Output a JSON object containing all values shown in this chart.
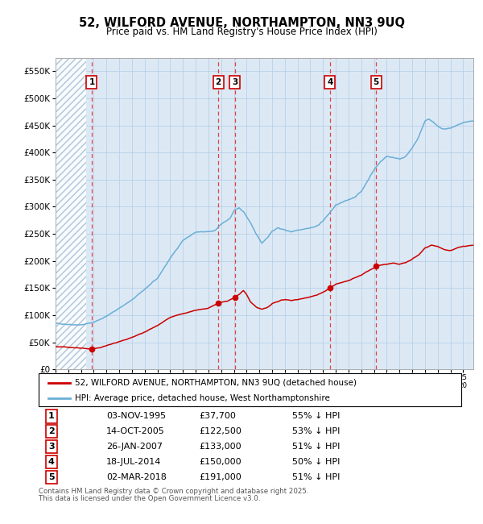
{
  "title_line1": "52, WILFORD AVENUE, NORTHAMPTON, NN3 9UQ",
  "title_line2": "Price paid vs. HM Land Registry's House Price Index (HPI)",
  "legend_line1": "52, WILFORD AVENUE, NORTHAMPTON, NN3 9UQ (detached house)",
  "legend_line2": "HPI: Average price, detached house, West Northamptonshire",
  "footer_line1": "Contains HM Land Registry data © Crown copyright and database right 2025.",
  "footer_line2": "This data is licensed under the Open Government Licence v3.0.",
  "sale_points": [
    {
      "num": 1,
      "date": "03-NOV-1995",
      "price": 37700,
      "pct": "55% ↓ HPI",
      "x_year": 1995.84
    },
    {
      "num": 2,
      "date": "14-OCT-2005",
      "price": 122500,
      "pct": "53% ↓ HPI",
      "x_year": 2005.78
    },
    {
      "num": 3,
      "date": "26-JAN-2007",
      "price": 133000,
      "pct": "51% ↓ HPI",
      "x_year": 2007.07
    },
    {
      "num": 4,
      "date": "18-JUL-2014",
      "price": 150000,
      "pct": "50% ↓ HPI",
      "x_year": 2014.54
    },
    {
      "num": 5,
      "date": "02-MAR-2018",
      "price": 191000,
      "pct": "51% ↓ HPI",
      "x_year": 2018.17
    }
  ],
  "hpi_color": "#6baed6",
  "sold_color": "#cc0000",
  "vline_color": "#e84040",
  "bg_color": "#dce9f5",
  "grid_color": "#b8d0e8",
  "ylim": [
    0,
    575000
  ],
  "xlim_start": 1993.0,
  "xlim_end": 2025.8,
  "yticks": [
    0,
    50000,
    100000,
    150000,
    200000,
    250000,
    300000,
    350000,
    400000,
    450000,
    500000,
    550000
  ],
  "ylabels": [
    "£0",
    "£50K",
    "£100K",
    "£150K",
    "£200K",
    "£250K",
    "£300K",
    "£350K",
    "£400K",
    "£450K",
    "£500K",
    "£550K"
  ]
}
